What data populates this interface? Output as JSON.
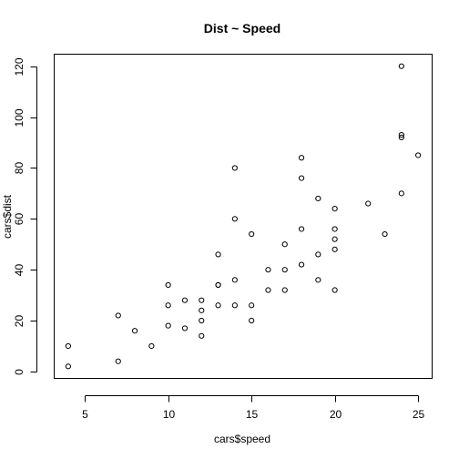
{
  "chart_data": {
    "type": "scatter",
    "title": "Dist ~ Speed",
    "xlabel": "cars$speed",
    "ylabel": "cars$dist",
    "xlim": [
      3.16,
      25.84
    ],
    "ylim": [
      -2.72,
      124.72
    ],
    "xticks": [
      5,
      10,
      15,
      20,
      25
    ],
    "yticks": [
      0,
      20,
      40,
      60,
      80,
      100,
      120
    ],
    "grid": false,
    "marker": "open-circle",
    "colors": {
      "points": "#000000",
      "axes": "#000000",
      "background": "#ffffff"
    },
    "points": [
      [
        4,
        2
      ],
      [
        4,
        10
      ],
      [
        7,
        4
      ],
      [
        7,
        22
      ],
      [
        8,
        16
      ],
      [
        9,
        10
      ],
      [
        10,
        18
      ],
      [
        10,
        26
      ],
      [
        10,
        34
      ],
      [
        11,
        17
      ],
      [
        11,
        28
      ],
      [
        12,
        14
      ],
      [
        12,
        20
      ],
      [
        12,
        24
      ],
      [
        12,
        28
      ],
      [
        13,
        26
      ],
      [
        13,
        34
      ],
      [
        13,
        34
      ],
      [
        13,
        46
      ],
      [
        14,
        26
      ],
      [
        14,
        36
      ],
      [
        14,
        60
      ],
      [
        14,
        80
      ],
      [
        15,
        20
      ],
      [
        15,
        26
      ],
      [
        15,
        54
      ],
      [
        16,
        32
      ],
      [
        16,
        40
      ],
      [
        17,
        32
      ],
      [
        17,
        40
      ],
      [
        17,
        50
      ],
      [
        18,
        42
      ],
      [
        18,
        56
      ],
      [
        18,
        76
      ],
      [
        18,
        84
      ],
      [
        19,
        36
      ],
      [
        19,
        46
      ],
      [
        19,
        68
      ],
      [
        20,
        32
      ],
      [
        20,
        48
      ],
      [
        20,
        52
      ],
      [
        20,
        56
      ],
      [
        20,
        64
      ],
      [
        22,
        66
      ],
      [
        23,
        54
      ],
      [
        24,
        70
      ],
      [
        24,
        92
      ],
      [
        24,
        93
      ],
      [
        24,
        120
      ],
      [
        25,
        85
      ]
    ]
  }
}
